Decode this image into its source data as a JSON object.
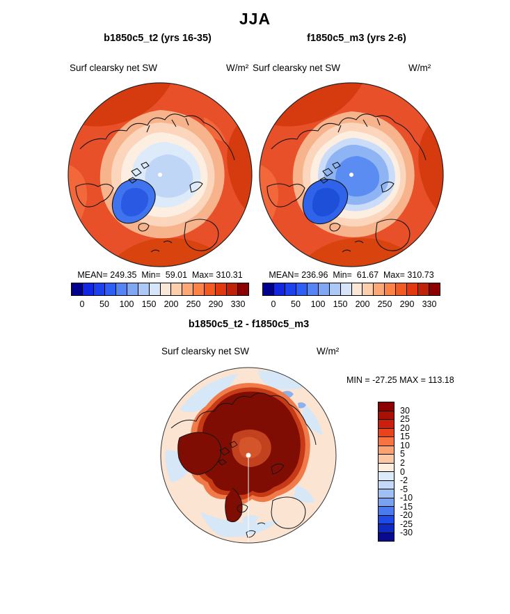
{
  "title": "JJA",
  "panels": {
    "left": {
      "title": "b1850c5_t2 (yrs 16-35)",
      "variable": "Surf clearsky net SW",
      "units": "W/m²",
      "stats": "MEAN= 249.35  Min=  59.01  Max= 310.31"
    },
    "right": {
      "title": "f1850c5_m3 (yrs 2-6)",
      "variable": "Surf clearsky net SW",
      "units": "W/m²",
      "stats": "MEAN= 236.96  Min=  61.67  Max= 310.73"
    },
    "diff": {
      "title": "b1850c5_t2 - f1850c5_m3",
      "variable": "Surf clearsky net SW",
      "units": "W/m²",
      "minmax": "MIN = -27.25 MAX = 113.18"
    }
  },
  "colorbars": {
    "absolute": {
      "orientation": "horizontal",
      "tick_labels": [
        "0",
        "50",
        "100",
        "150",
        "200",
        "250",
        "290",
        "330"
      ],
      "colors": [
        "#00008f",
        "#1228e0",
        "#1c42f0",
        "#2e5ff5",
        "#5585f4",
        "#7fa7f2",
        "#abc8f6",
        "#d6e5f9",
        "#fae7d8",
        "#fbceac",
        "#fba876",
        "#fb8348",
        "#f25a22",
        "#e1380e",
        "#bf2208",
        "#8b0000"
      ]
    },
    "difference": {
      "orientation": "vertical",
      "tick_labels": [
        "30",
        "25",
        "20",
        "15",
        "10",
        "5",
        "2",
        "0",
        "-2",
        "-5",
        "-10",
        "-15",
        "-20",
        "-25",
        "-30"
      ],
      "colors": [
        "#8b0000",
        "#a81004",
        "#cc1e0c",
        "#ea421a",
        "#f97242",
        "#fba273",
        "#fcc8a4",
        "#fdeede",
        "#dcebfa",
        "#c3d9f6",
        "#9ec0f2",
        "#78a2f0",
        "#4a7bee",
        "#1e4ae8",
        "#0f2ac0",
        "#0a0a8f"
      ]
    }
  },
  "chart_data": [
    {
      "type": "heatmap",
      "title": "b1850c5_t2 (yrs 16-35)",
      "season": "JJA",
      "variable": "Surf clearsky net SW",
      "units": "W/m²",
      "map": "north polar view",
      "stats": {
        "mean": 249.35,
        "min": 59.01,
        "max": 310.31
      },
      "levels": [
        0,
        50,
        100,
        150,
        200,
        250,
        290,
        330
      ],
      "legend_position": "bottom"
    },
    {
      "type": "heatmap",
      "title": "f1850c5_m3 (yrs 2-6)",
      "season": "JJA",
      "variable": "Surf clearsky net SW",
      "units": "W/m²",
      "map": "north polar view",
      "stats": {
        "mean": 236.96,
        "min": 61.67,
        "max": 310.73
      },
      "levels": [
        0,
        50,
        100,
        150,
        200,
        250,
        290,
        330
      ],
      "legend_position": "bottom"
    },
    {
      "type": "heatmap",
      "title": "b1850c5_t2 - f1850c5_m3",
      "season": "JJA",
      "variable": "Surf clearsky net SW",
      "units": "W/m²",
      "map": "north polar view",
      "stats": {
        "min": -27.25,
        "max": 113.18
      },
      "levels": [
        30,
        25,
        20,
        15,
        10,
        5,
        2,
        0,
        -2,
        -5,
        -10,
        -15,
        -20,
        -25,
        -30
      ],
      "legend_position": "right"
    }
  ]
}
